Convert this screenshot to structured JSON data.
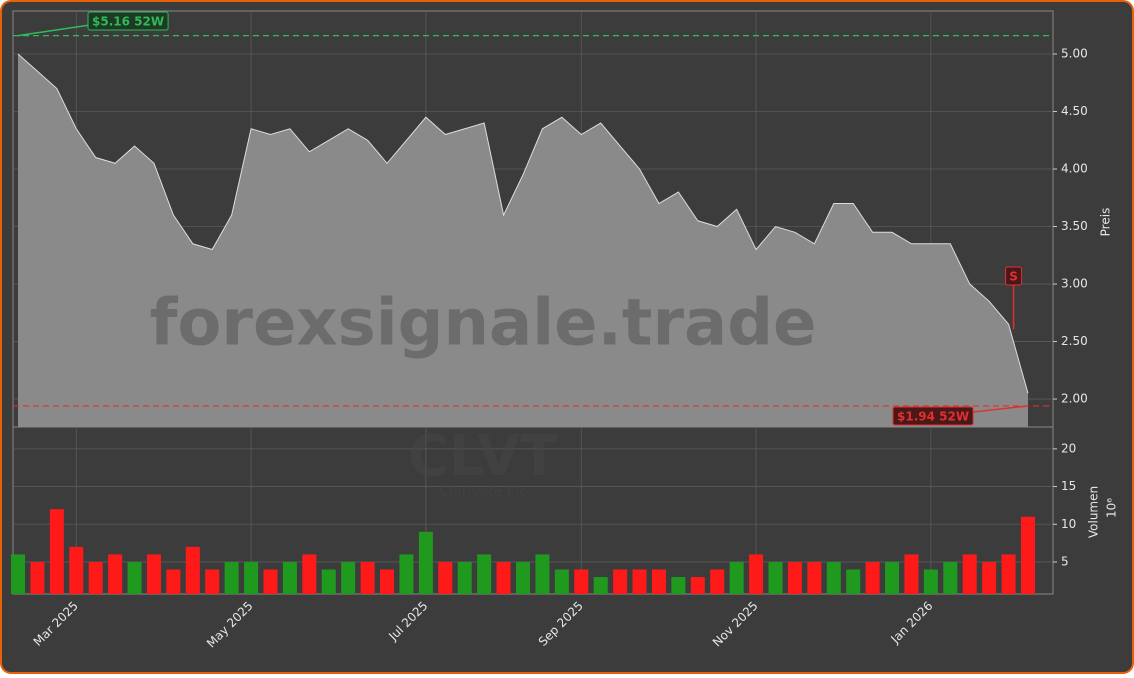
{
  "chart_data": [
    {
      "type": "area",
      "title": "CLVT",
      "subtitle": "Clarivate Plc",
      "watermark": "forexsignale.trade",
      "y_label": "Preis",
      "categories": [
        null,
        null,
        null,
        "Mar 2025",
        null,
        null,
        null,
        null,
        null,
        null,
        null,
        null,
        "May 2025",
        null,
        null,
        null,
        null,
        null,
        null,
        null,
        null,
        "Jul 2025",
        null,
        null,
        null,
        null,
        null,
        null,
        null,
        "Sep 2025",
        null,
        null,
        null,
        null,
        null,
        null,
        null,
        null,
        "Nov 2025",
        null,
        null,
        null,
        null,
        null,
        null,
        null,
        null,
        "Jan 2026",
        null,
        null,
        null,
        null,
        null
      ],
      "values": [
        5.0,
        4.85,
        4.7,
        4.35,
        4.1,
        4.05,
        4.2,
        4.05,
        3.6,
        3.35,
        3.3,
        3.6,
        4.35,
        4.3,
        4.35,
        4.15,
        4.25,
        4.35,
        4.25,
        4.05,
        4.25,
        4.45,
        4.3,
        4.35,
        4.4,
        3.6,
        3.95,
        4.35,
        4.45,
        4.3,
        4.4,
        4.2,
        4.0,
        3.7,
        3.8,
        3.55,
        3.5,
        3.65,
        3.3,
        3.5,
        3.45,
        3.35,
        3.7,
        3.7,
        3.45,
        3.45,
        3.35,
        3.35,
        3.35,
        3.0,
        2.85,
        2.65,
        2.05
      ],
      "color": "#8a8a8a",
      "ylim": [
        1.757,
        5.374
      ],
      "yticks": [
        {
          "value": 2,
          "label": "2.00"
        },
        {
          "value": 2.5,
          "label": "2.50"
        },
        {
          "value": 3,
          "label": "3.00"
        },
        {
          "value": 3.5,
          "label": "3.50"
        },
        {
          "value": 4,
          "label": "4.00"
        },
        {
          "value": 4.5,
          "label": "4.50"
        },
        {
          "value": 5,
          "label": "5.00"
        }
      ],
      "grid": true,
      "annotations": [
        {
          "label": "$5.16 52W",
          "value": 5.16,
          "color": "#33b85a"
        },
        {
          "label": "$1.94 52W",
          "value": 1.94,
          "color": "#e03030"
        }
      ],
      "signal": {
        "label": "S",
        "color": "#e03030"
      }
    },
    {
      "type": "bar",
      "y_label": "Volumen",
      "y_unit": "10⁶",
      "values": [
        6,
        5,
        12,
        7,
        5,
        6,
        5,
        6,
        4,
        7,
        4,
        5,
        5,
        4,
        5,
        6,
        4,
        5,
        5,
        4,
        6,
        9,
        5,
        5,
        6,
        5,
        5,
        6,
        4,
        4,
        3,
        4,
        4,
        4,
        3,
        3,
        4,
        5,
        6,
        5,
        5,
        5,
        5,
        4,
        5,
        5,
        6,
        4,
        5,
        6,
        5,
        6,
        11
      ],
      "up_color": "#1f9a1f",
      "down_color": "#ff1a1a",
      "ylim": [
        0.75,
        22.9
      ],
      "yticks": [
        5,
        10,
        15,
        20
      ],
      "grid": true
    }
  ]
}
